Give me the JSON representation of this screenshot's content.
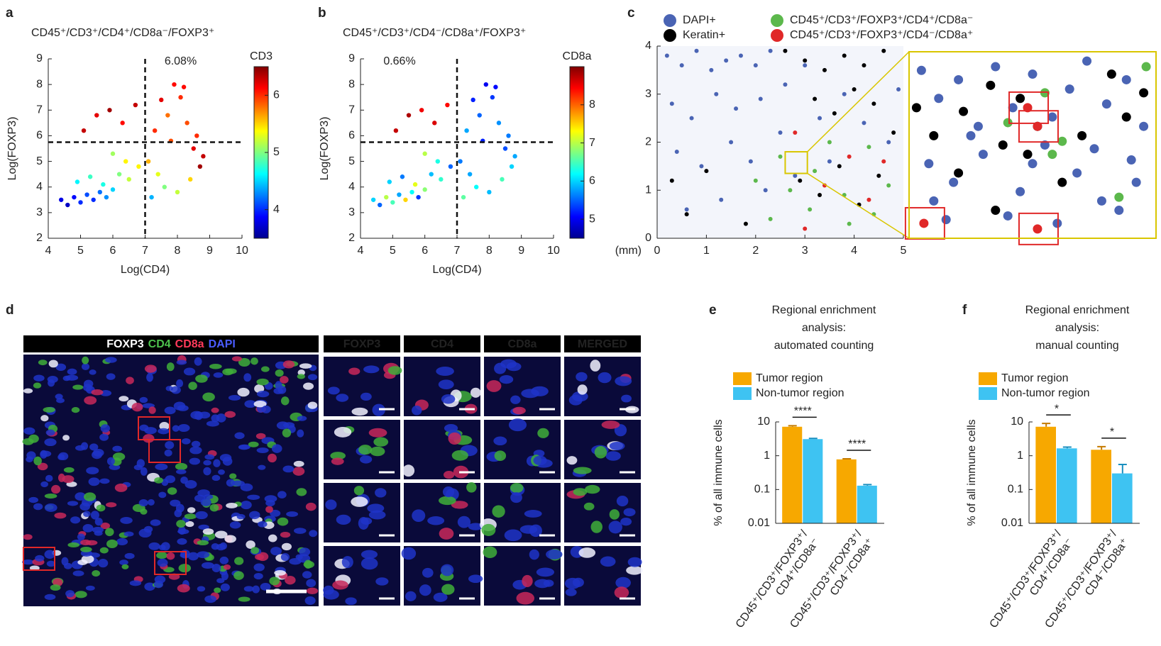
{
  "chart_data": [
    {
      "type": "scatter",
      "panel": "a",
      "title": "CD45⁺/CD3⁺/CD4⁺/CD8a⁻/FOXP3⁺",
      "xlabel": "Log(CD4)",
      "ylabel": "Log(FOXP3)",
      "x": [
        4.4,
        4.6,
        4.8,
        5.0,
        5.2,
        5.4,
        5.6,
        5.8,
        6.0,
        4.9,
        5.3,
        5.7,
        6.2,
        6.5,
        6.8,
        5.1,
        5.5,
        5.9,
        6.3,
        6.7,
        7.1,
        7.3,
        7.5,
        7.7,
        7.9,
        8.1,
        8.3,
        8.5,
        8.7,
        7.4,
        7.8,
        8.2,
        8.6,
        7.6,
        8.0,
        8.4,
        7.2,
        8.8,
        6.0,
        6.4
      ],
      "values": [
        3.5,
        3.3,
        3.6,
        3.4,
        3.7,
        3.5,
        3.8,
        3.6,
        3.9,
        4.2,
        4.4,
        4.1,
        4.5,
        4.3,
        4.8,
        6.2,
        6.8,
        7.0,
        6.5,
        7.2,
        5.0,
        6.2,
        7.4,
        6.8,
        8.0,
        7.5,
        6.5,
        5.5,
        4.8,
        4.5,
        5.8,
        7.9,
        6.0,
        4.0,
        3.8,
        4.3,
        3.6,
        5.2,
        5.3,
        5.0
      ],
      "color_values": [
        3.8,
        3.7,
        3.9,
        4.0,
        4.1,
        4.0,
        4.2,
        4.3,
        4.5,
        4.6,
        4.8,
        4.7,
        5.0,
        5.2,
        5.4,
        6.3,
        6.2,
        6.4,
        6.1,
        6.3,
        5.6,
        6.0,
        6.2,
        5.8,
        6.1,
        6.0,
        5.9,
        6.2,
        6.4,
        5.3,
        5.9,
        6.1,
        6.0,
        5.0,
        5.2,
        5.5,
        4.4,
        6.3,
        5.1,
        5.4
      ],
      "xlim": [
        4,
        10
      ],
      "xticks": [
        4,
        5,
        6,
        7,
        8,
        9,
        10
      ],
      "ylim": [
        2,
        9
      ],
      "yticks": [
        2,
        3,
        4,
        5,
        6,
        7,
        8,
        9
      ],
      "gates": {
        "x": 7,
        "y": 5.75
      },
      "annotation": "6.08%",
      "annotation_corner": "top-right",
      "colorbar": {
        "label": "CD3",
        "lim": [
          3.5,
          6.5
        ],
        "ticks": [
          4,
          5,
          6
        ]
      }
    },
    {
      "type": "scatter",
      "panel": "b",
      "title": "CD45⁺/CD3⁺/CD4⁻/CD8a⁺/FOXP3⁺",
      "xlabel": "Log(CD4)",
      "ylabel": "Log(FOXP3)",
      "x": [
        4.4,
        4.6,
        4.8,
        5.0,
        5.2,
        5.4,
        5.6,
        5.8,
        6.0,
        4.9,
        5.3,
        5.7,
        6.2,
        6.5,
        6.8,
        5.1,
        5.5,
        5.9,
        6.3,
        6.7,
        7.1,
        7.3,
        7.5,
        7.7,
        7.9,
        8.1,
        8.3,
        8.5,
        8.7,
        7.4,
        7.8,
        8.2,
        8.6,
        7.6,
        8.0,
        8.4,
        7.2,
        8.8,
        6.0,
        6.4
      ],
      "values": [
        3.5,
        3.3,
        3.6,
        3.4,
        3.7,
        3.5,
        3.8,
        3.6,
        3.9,
        4.2,
        4.4,
        4.1,
        4.5,
        4.3,
        4.8,
        6.2,
        6.8,
        7.0,
        6.5,
        7.2,
        5.0,
        6.2,
        7.4,
        6.8,
        8.0,
        7.5,
        6.5,
        5.5,
        4.8,
        4.5,
        5.8,
        7.9,
        6.0,
        4.0,
        3.8,
        4.3,
        3.6,
        5.2,
        5.3,
        5.0
      ],
      "color_values": [
        6.0,
        5.5,
        7.0,
        6.5,
        5.8,
        7.5,
        6.2,
        5.3,
        6.8,
        6.0,
        5.6,
        7.2,
        5.9,
        6.4,
        5.5,
        8.7,
        8.8,
        8.5,
        8.6,
        8.4,
        5.6,
        5.8,
        5.2,
        5.5,
        5.0,
        5.3,
        5.7,
        5.4,
        6.0,
        5.8,
        5.2,
        5.1,
        5.6,
        6.2,
        5.9,
        6.5,
        6.6,
        5.8,
        7.0,
        6.3
      ],
      "xlim": [
        4,
        10
      ],
      "xticks": [
        4,
        5,
        6,
        7,
        8,
        9,
        10
      ],
      "ylim": [
        2,
        9
      ],
      "yticks": [
        2,
        3,
        4,
        5,
        6,
        7,
        8,
        9
      ],
      "gates": {
        "x": 7,
        "y": 5.75
      },
      "annotation": "0.66%",
      "annotation_corner": "top-left",
      "colorbar": {
        "label": "CD8a",
        "lim": [
          4.5,
          9
        ],
        "ticks": [
          5,
          6,
          7,
          8
        ]
      }
    },
    {
      "type": "scatter",
      "panel": "c",
      "xlabel": "(mm)",
      "xlim": [
        0,
        5
      ],
      "xticks": [
        0,
        1,
        2,
        3,
        4,
        5
      ],
      "ylim": [
        0,
        4
      ],
      "yticks": [
        0,
        1,
        2,
        3,
        4
      ],
      "series": [
        {
          "name": "DAPI+",
          "color": "#4a64b4",
          "x": [
            0.2,
            0.5,
            0.8,
            1.1,
            1.4,
            1.7,
            2.0,
            2.3,
            0.3,
            0.7,
            1.2,
            1.6,
            2.1,
            2.6,
            3.0,
            0.4,
            0.9,
            1.5,
            1.9,
            2.5,
            3.3,
            3.8,
            0.6,
            1.3,
            2.2,
            2.8,
            3.5,
            4.2,
            4.7,
            4.9
          ],
          "values": [
            3.8,
            3.6,
            3.9,
            3.5,
            3.7,
            3.8,
            3.6,
            3.9,
            2.8,
            2.5,
            3.0,
            2.7,
            2.9,
            3.2,
            3.6,
            1.8,
            1.5,
            2.0,
            1.6,
            2.2,
            2.5,
            3.0,
            0.6,
            0.8,
            1.0,
            1.3,
            1.6,
            2.4,
            2.0,
            3.1
          ]
        },
        {
          "name": "Keratin+",
          "color": "#000000",
          "x": [
            2.6,
            3.0,
            3.4,
            3.8,
            4.2,
            4.6,
            3.2,
            3.6,
            4.0,
            4.4,
            4.8,
            2.9,
            3.3,
            3.7,
            4.1,
            4.5,
            0.3,
            0.6,
            1.0,
            1.8
          ],
          "values": [
            3.9,
            3.7,
            3.5,
            3.8,
            3.6,
            3.9,
            2.9,
            2.6,
            3.1,
            2.8,
            2.2,
            1.2,
            0.9,
            1.5,
            0.7,
            1.3,
            1.2,
            0.5,
            1.4,
            0.3
          ]
        },
        {
          "name": "CD45⁺/CD3⁺/FOXP3⁺/CD4⁺/CD8a⁻",
          "color": "#5cb84c",
          "x": [
            2.3,
            2.7,
            3.1,
            3.5,
            3.9,
            4.3,
            4.7,
            2.5,
            3.2,
            3.8,
            4.4,
            2.0
          ],
          "values": [
            0.4,
            1.0,
            0.6,
            2.0,
            0.3,
            1.9,
            1.1,
            1.7,
            1.4,
            0.9,
            0.5,
            1.2
          ]
        },
        {
          "name": "CD45⁺/CD3⁺/FOXP3⁺/CD4⁻/CD8a⁺",
          "color": "#e02828",
          "x": [
            3.4,
            3.9,
            4.3,
            4.6,
            3.0,
            2.8
          ],
          "values": [
            1.1,
            1.7,
            0.8,
            1.6,
            0.2,
            2.2
          ]
        }
      ],
      "zoom": {
        "xlim": [
          2.6,
          3.05
        ],
        "ylim": [
          1.35,
          1.8
        ]
      },
      "inset": {
        "xlim": [
          0,
          100
        ],
        "ylim": [
          0,
          100
        ],
        "series": [
          {
            "x": [
              5,
              12,
              20,
              28,
              35,
              42,
              50,
              58,
              65,
              72,
              80,
              88,
              95,
              8,
              18,
              30,
              45,
              55,
              68,
              78,
              90,
              15,
              25,
              40,
              60,
              75,
              85,
              10,
              50,
              92
            ],
            "values": [
              90,
              75,
              85,
              60,
              92,
              70,
              88,
              65,
              80,
              95,
              72,
              85,
              60,
              40,
              30,
              45,
              25,
              50,
              35,
              20,
              42,
              10,
              55,
              12,
              8,
              48,
              15,
              20,
              40,
              30
            ]
          },
          {
            "x": [
              3,
              10,
              22,
              33,
              38,
              45,
              48,
              62,
              70,
              82,
              88,
              20,
              35,
              52,
              95
            ],
            "values": [
              70,
              55,
              68,
              82,
              50,
              75,
              45,
              30,
              55,
              88,
              65,
              35,
              15,
              60,
              78
            ]
          },
          {
            "x": [
              40,
              55,
              62,
              58,
              85,
              96
            ],
            "values": [
              62,
              78,
              52,
              45,
              22,
              92
            ]
          },
          {
            "x": [
              48,
              52,
              6,
              52
            ],
            "values": [
              70,
              60,
              8,
              5
            ]
          }
        ]
      }
    },
    {
      "type": "bar",
      "panel": "e",
      "title": [
        "Regional enrichment",
        "analysis:",
        "automated counting"
      ],
      "ylabel": "% of all immune cells",
      "log": true,
      "categories": [
        [
          "CD45⁺/CD3⁺/FOXP3⁺/",
          "CD4⁺/CD8a⁻"
        ],
        [
          "CD45⁺/CD3⁺/FOXP3⁺/",
          "CD4⁻/CD8a⁺"
        ]
      ],
      "series": [
        {
          "name": "Tumor region",
          "color": "#f7a800",
          "values": [
            7.2,
            0.78
          ],
          "errors": [
            0.5,
            0.03
          ]
        },
        {
          "name": "Non-tumor region",
          "color": "#3ec3f2",
          "values": [
            3.1,
            0.13
          ],
          "errors": [
            0.15,
            0.01
          ]
        }
      ],
      "significance": [
        "****",
        "****"
      ],
      "ylim": [
        0.01,
        10
      ],
      "yticks": [
        0.01,
        0.1,
        1,
        10
      ]
    },
    {
      "type": "bar",
      "panel": "f",
      "title": [
        "Regional enrichment",
        "analysis:",
        "manual counting"
      ],
      "ylabel": "% of all immune cells",
      "log": true,
      "categories": [
        [
          "CD45⁺/CD3⁺/FOXP3⁺/",
          "CD4⁺/CD8a⁻"
        ],
        [
          "CD45⁺/CD3⁺/FOXP3⁺/",
          "CD4⁻/CD8a⁺"
        ]
      ],
      "series": [
        {
          "name": "Tumor region",
          "color": "#f7a800",
          "values": [
            7.2,
            1.5
          ],
          "errors": [
            1.8,
            0.35
          ]
        },
        {
          "name": "Non-tumor region",
          "color": "#3ec3f2",
          "values": [
            1.65,
            0.3
          ],
          "errors": [
            0.15,
            0.25
          ]
        }
      ],
      "significance": [
        "*",
        "*"
      ],
      "ylim": [
        0.01,
        10
      ],
      "yticks": [
        0.01,
        0.1,
        1,
        10
      ]
    }
  ],
  "image_panel": {
    "panel": "d",
    "stains": [
      "FOXP3",
      "CD4",
      "CD8a",
      "DAPI"
    ],
    "columns": [
      "FOXP3",
      "CD4",
      "CD8a",
      "MERGED"
    ]
  }
}
